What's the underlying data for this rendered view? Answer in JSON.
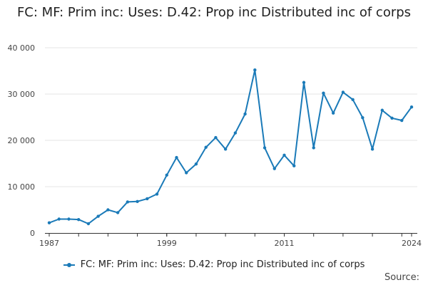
{
  "chart_data": {
    "type": "line",
    "title": "FC: MF: Prim inc: Uses: D.42: Prop inc Distributed inc of corps",
    "xlabel": "",
    "ylabel": "",
    "x": [
      1987,
      1988,
      1989,
      1990,
      1991,
      1992,
      1993,
      1994,
      1995,
      1996,
      1997,
      1998,
      1999,
      2000,
      2001,
      2002,
      2003,
      2004,
      2005,
      2006,
      2007,
      2008,
      2009,
      2010,
      2011,
      2012,
      2013,
      2014,
      2015,
      2016,
      2017,
      2018,
      2019,
      2020,
      2021,
      2022,
      2023,
      2024
    ],
    "x_ticks": [
      "1987",
      "1999",
      "2011",
      "2024"
    ],
    "x_tick_values": [
      1987,
      1999,
      2011,
      2024
    ],
    "xlim": [
      1987,
      2024
    ],
    "y_ticks": [
      "0",
      "10 000",
      "20 000",
      "30 000",
      "40 000"
    ],
    "y_tick_values": [
      0,
      10000,
      20000,
      30000,
      40000
    ],
    "ylim": [
      0,
      40000
    ],
    "grid": true,
    "legend_position": "bottom",
    "series": [
      {
        "name": "FC: MF: Prim inc: Uses: D.42: Prop inc Distributed inc of corps",
        "color": "#1a7ab8",
        "values": [
          2200,
          3000,
          3000,
          2900,
          2000,
          3600,
          5000,
          4400,
          6700,
          6800,
          7400,
          8400,
          12500,
          16300,
          13000,
          14900,
          18500,
          20600,
          18100,
          21600,
          25700,
          35200,
          18400,
          13900,
          16800,
          14500,
          32500,
          18400,
          30200,
          25900,
          30400,
          28800,
          24900,
          18100,
          26500,
          24800,
          24300,
          27200
        ]
      }
    ]
  },
  "legend": {
    "label": "FC: MF: Prim inc: Uses: D.42: Prop inc Distributed inc of corps"
  },
  "source": "Source:"
}
